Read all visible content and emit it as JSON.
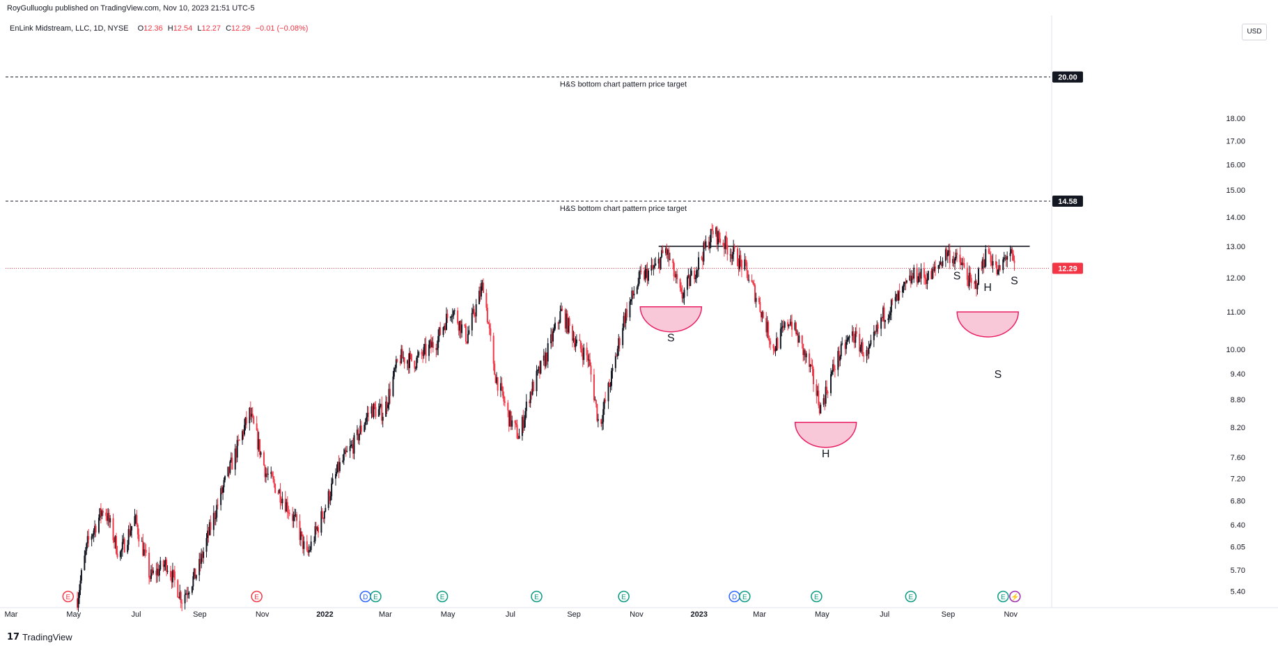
{
  "header": {
    "published": "RoyGulluoglu published on TradingView.com, Nov 10, 2023 21:51 UTC-5"
  },
  "legend": {
    "symbol": "EnLink Midstream, LLC, 1D, NYSE",
    "o_label": "O",
    "o": "12.36",
    "h_label": "H",
    "h": "12.54",
    "l_label": "L",
    "l": "12.27",
    "c_label": "C",
    "c": "12.29",
    "change": "−0.01 (−0.08%)"
  },
  "currency": "USD",
  "footer": {
    "brand": "TradingView",
    "logo_icon": "tradingview-logo-icon"
  },
  "colors": {
    "up": "#131722",
    "down": "#f23645",
    "last": "#f23645",
    "cup": "#f8c8d9",
    "cup_stroke": "#e91e63"
  },
  "chart_data": {
    "type": "candlestick",
    "symbol": "EnLink Midstream, LLC",
    "interval": "1D",
    "exchange": "NYSE",
    "x_start": "2021-03",
    "x_end": "2023-11-10",
    "x_tick_labels": [
      "Mar",
      "May",
      "Jul",
      "Sep",
      "Nov",
      "2022",
      "Mar",
      "May",
      "Jul",
      "Sep",
      "Nov",
      "2023",
      "Mar",
      "May",
      "Jul",
      "Sep",
      "Nov"
    ],
    "y_scale": "log",
    "y_ticks": [
      "20.00",
      "18.00",
      "17.00",
      "16.00",
      "15.00",
      "14.00",
      "13.00",
      "12.00",
      "11.00",
      "10.00",
      "9.40",
      "8.80",
      "8.20",
      "7.60",
      "7.20",
      "6.80",
      "6.40",
      "6.05",
      "5.70",
      "5.40"
    ],
    "ylim": [
      5.2,
      23.4
    ],
    "last_price": "12.29",
    "target_lines": [
      {
        "value": "20.00",
        "label": "H&S bottom chart pattern price target"
      },
      {
        "value": "14.58",
        "label": "H&S bottom chart pattern price target"
      }
    ],
    "neckline": {
      "value": 13.0,
      "from": "2022-12",
      "to": "2023-11"
    },
    "price_path": [
      [
        "2021-05-10",
        5.3
      ],
      [
        "2021-05-20",
        6.1
      ],
      [
        "2021-06-05",
        6.7
      ],
      [
        "2021-06-20",
        5.9
      ],
      [
        "2021-07-05",
        6.5
      ],
      [
        "2021-07-20",
        5.6
      ],
      [
        "2021-08-05",
        5.8
      ],
      [
        "2021-08-20",
        5.3
      ],
      [
        "2021-09-05",
        5.7
      ],
      [
        "2021-09-25",
        6.8
      ],
      [
        "2021-10-10",
        7.6
      ],
      [
        "2021-10-25",
        8.5
      ],
      [
        "2021-11-10",
        7.3
      ],
      [
        "2021-11-25",
        6.9
      ],
      [
        "2021-12-10",
        6.4
      ],
      [
        "2021-12-20",
        5.9
      ],
      [
        "2022-01-05",
        6.6
      ],
      [
        "2022-01-20",
        7.4
      ],
      [
        "2022-02-05",
        7.9
      ],
      [
        "2022-02-20",
        8.6
      ],
      [
        "2022-03-05",
        8.5
      ],
      [
        "2022-03-20",
        9.8
      ],
      [
        "2022-04-05",
        9.7
      ],
      [
        "2022-04-25",
        10.2
      ],
      [
        "2022-05-10",
        11.1
      ],
      [
        "2022-05-25",
        10.3
      ],
      [
        "2022-06-10",
        11.8
      ],
      [
        "2022-06-20",
        9.5
      ],
      [
        "2022-07-05",
        8.4
      ],
      [
        "2022-07-15",
        8.0
      ],
      [
        "2022-07-25",
        8.9
      ],
      [
        "2022-08-10",
        9.8
      ],
      [
        "2022-08-25",
        11.0
      ],
      [
        "2022-09-10",
        10.1
      ],
      [
        "2022-09-20",
        9.8
      ],
      [
        "2022-10-01",
        8.2
      ],
      [
        "2022-10-15",
        9.5
      ],
      [
        "2022-10-25",
        10.8
      ],
      [
        "2022-11-10",
        12.0
      ],
      [
        "2022-11-25",
        12.3
      ],
      [
        "2022-12-05",
        12.9
      ],
      [
        "2022-12-20",
        11.4
      ],
      [
        "2023-01-05",
        12.4
      ],
      [
        "2023-01-20",
        13.5
      ],
      [
        "2023-02-05",
        12.9
      ],
      [
        "2023-02-20",
        12.3
      ],
      [
        "2023-03-05",
        11.3
      ],
      [
        "2023-03-20",
        10.0
      ],
      [
        "2023-04-05",
        10.8
      ],
      [
        "2023-04-25",
        9.5
      ],
      [
        "2023-05-05",
        8.6
      ],
      [
        "2023-05-20",
        9.7
      ],
      [
        "2023-06-05",
        10.4
      ],
      [
        "2023-06-20",
        9.8
      ],
      [
        "2023-07-05",
        10.9
      ],
      [
        "2023-07-20",
        11.4
      ],
      [
        "2023-08-05",
        12.1
      ],
      [
        "2023-08-20",
        12.0
      ],
      [
        "2023-09-05",
        12.8
      ],
      [
        "2023-09-20",
        12.4
      ],
      [
        "2023-10-01",
        11.6
      ],
      [
        "2023-10-15",
        12.9
      ],
      [
        "2023-10-25",
        12.1
      ],
      [
        "2023-11-05",
        12.9
      ],
      [
        "2023-11-10",
        12.29
      ]
    ],
    "annotations": [
      {
        "text": "S",
        "date": "2022-12-10",
        "value": 10.2,
        "cup": true
      },
      {
        "text": "H",
        "date": "2023-05-10",
        "value": 7.6,
        "cup": true
      },
      {
        "text": "S",
        "date": "2023-09-15",
        "value": 11.95
      },
      {
        "text": "H",
        "date": "2023-10-15",
        "value": 11.6
      },
      {
        "text": "S",
        "date": "2023-11-10",
        "value": 11.8
      },
      {
        "text": "S",
        "date": "2023-10-25",
        "value": 9.3,
        "cup_right": true
      }
    ],
    "event_markers": [
      {
        "date": "2021-05-01",
        "icons": [
          "E"
        ]
      },
      {
        "date": "2021-11-01",
        "icons": [
          "E"
        ]
      },
      {
        "date": "2022-02-15",
        "icons": [
          "D"
        ]
      },
      {
        "date": "2022-02-25",
        "icons": [
          "E"
        ]
      },
      {
        "date": "2022-05-01",
        "icons": [
          "E"
        ]
      },
      {
        "date": "2022-08-01",
        "icons": [
          "E"
        ]
      },
      {
        "date": "2022-10-25",
        "icons": [
          "E"
        ]
      },
      {
        "date": "2023-02-10",
        "icons": [
          "D"
        ]
      },
      {
        "date": "2023-02-20",
        "icons": [
          "E"
        ]
      },
      {
        "date": "2023-05-01",
        "icons": [
          "E"
        ]
      },
      {
        "date": "2023-08-01",
        "icons": [
          "E"
        ]
      },
      {
        "date": "2023-10-30",
        "icons": [
          "E",
          "⚡"
        ]
      }
    ]
  }
}
